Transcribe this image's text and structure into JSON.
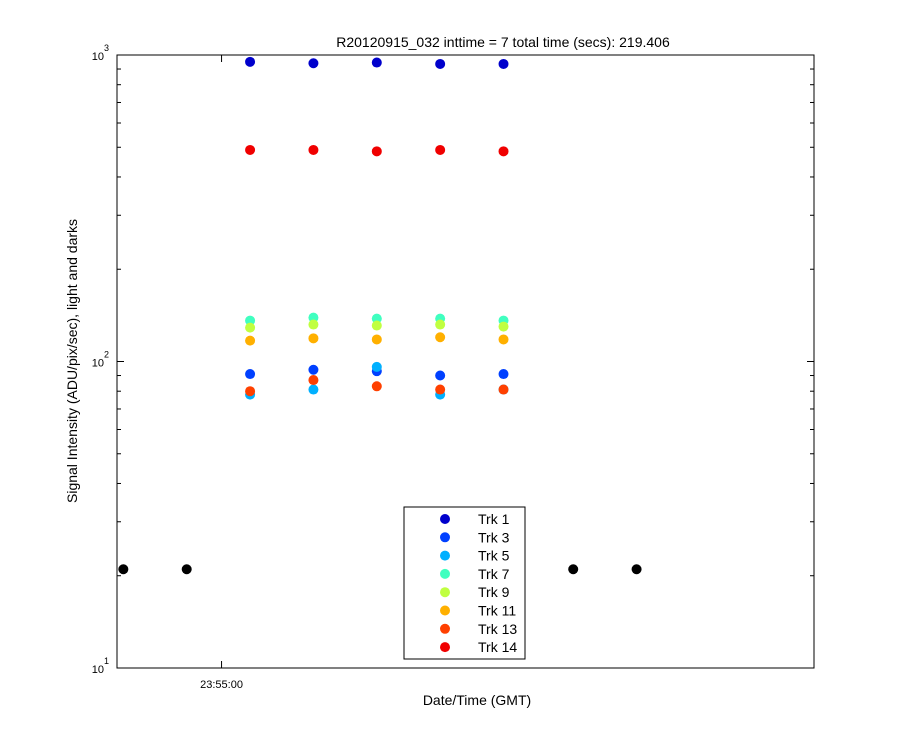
{
  "chart_data": {
    "type": "scatter",
    "title": "R20120915_032 inttime = 7 total time (secs): 219.406",
    "xlabel": "Date/Time (GMT)",
    "ylabel": "Signal Intensity (ADU/pix/sec), light and darks",
    "y_scale": "log",
    "ylim": [
      10,
      1000
    ],
    "y_ticks": [
      {
        "base": "10",
        "exp": "1"
      },
      {
        "base": "10",
        "exp": "2"
      },
      {
        "base": "10",
        "exp": "3"
      }
    ],
    "xlim": [
      -33,
      187
    ],
    "x_tick_labels": [
      {
        "x": 0,
        "label": "23:55:00"
      }
    ],
    "grid": false,
    "legend_position": "lower-center",
    "series": [
      {
        "name": "Trk 1",
        "color": "#0000cc",
        "x": [
          9,
          29,
          49,
          69,
          89
        ],
        "y": [
          950,
          940,
          945,
          935,
          935
        ]
      },
      {
        "name": "Trk 3",
        "color": "#0040ff",
        "x": [
          9,
          29,
          49,
          69,
          89
        ],
        "y": [
          91,
          94,
          93,
          90,
          91
        ]
      },
      {
        "name": "Trk 5",
        "color": "#00b0ff",
        "x": [
          9,
          29,
          49,
          69,
          89
        ],
        "y": [
          78,
          81,
          96,
          78,
          81
        ]
      },
      {
        "name": "Trk 7",
        "color": "#40ffc0",
        "x": [
          9,
          29,
          49,
          69,
          89
        ],
        "y": [
          136,
          139,
          138,
          138,
          136
        ]
      },
      {
        "name": "Trk 9",
        "color": "#c0ff40",
        "x": [
          9,
          29,
          49,
          69,
          89
        ],
        "y": [
          129,
          132,
          131,
          132,
          130
        ]
      },
      {
        "name": "Trk 11",
        "color": "#ffb000",
        "x": [
          9,
          29,
          49,
          69,
          89
        ],
        "y": [
          117,
          119,
          118,
          120,
          118
        ]
      },
      {
        "name": "Trk 13",
        "color": "#ff4000",
        "x": [
          9,
          29,
          49,
          69,
          89
        ],
        "y": [
          80,
          87,
          83,
          81,
          81
        ]
      },
      {
        "name": "Trk 14",
        "color": "#f00000",
        "x": [
          9,
          29,
          49,
          69,
          89
        ],
        "y": [
          490,
          490,
          485,
          490,
          485
        ]
      }
    ],
    "darks": {
      "color": "#000000",
      "x": [
        -31,
        -11,
        111,
        131
      ],
      "y": [
        21,
        21,
        21,
        21
      ]
    }
  }
}
